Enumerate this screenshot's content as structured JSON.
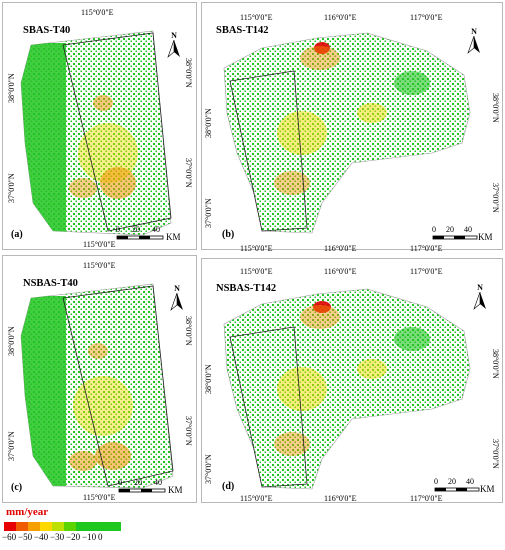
{
  "panels": [
    {
      "title": "SBAS-T40",
      "label": "(a)",
      "top_lon": [
        "115°0'0\"E"
      ],
      "bottom_lon": [
        "115°0'0\"E"
      ],
      "left_lat": [
        "38°0'0\"N",
        "37°0'0\"N"
      ],
      "right_lat": [
        "38°0'0\"N",
        "37°0'0\"N"
      ]
    },
    {
      "title": "SBAS-T142",
      "label": "(b)",
      "top_lon": [
        "115°0'0\"E",
        "116°0'0\"E",
        "117°0'0\"E"
      ],
      "bottom_lon": [
        "115°0'0\"E",
        "116°0'0\"E",
        "117°0'0\"E"
      ],
      "left_lat": [
        "38°0'0\"N",
        "37°0'0\"N"
      ],
      "right_lat": [
        "38°0'0\"N",
        "37°0'0\"N"
      ]
    },
    {
      "title": "NSBAS-T40",
      "label": "(c)",
      "top_lon": [
        "115°0'0\"E"
      ],
      "bottom_lon": [
        "115°0'0\"E"
      ],
      "left_lat": [
        "38°0'0\"N",
        "37°0'0\"N"
      ],
      "right_lat": [
        "38°0'0\"N",
        "37°0'0\"N"
      ]
    },
    {
      "title": "NSBAS-T142",
      "label": "(d)",
      "top_lon": [
        "115°0'0\"E",
        "116°0'0\"E",
        "117°0'0\"E"
      ],
      "bottom_lon": [
        "115°0'0\"E",
        "116°0'0\"E",
        "117°0'0\"E"
      ],
      "left_lat": [
        "38°0'0\"N",
        "37°0'0\"N"
      ],
      "right_lat": [
        "38°0'0\"N",
        "37°0'0\"N"
      ]
    }
  ],
  "north_arrow": "N",
  "north_arrow_icon": "north-arrow-icon",
  "scale_bar": {
    "ticks": [
      "0",
      "20",
      "40"
    ],
    "unit": "KM"
  },
  "legend": {
    "title": "mm/year",
    "tick_labels": [
      "−60",
      "−50",
      "−40",
      "−30",
      "−20",
      "−10",
      "0"
    ],
    "colors": [
      "#e60000",
      "#f05a00",
      "#f5a000",
      "#ffd800",
      "#bde000",
      "#5cd400",
      "#1ec81e"
    ]
  },
  "colors": {
    "deformation_green": "#22c422",
    "subsidence_red": "#e00000",
    "subsidence_orange": "#f29100",
    "subsidence_yellow": "#f0dc00"
  }
}
